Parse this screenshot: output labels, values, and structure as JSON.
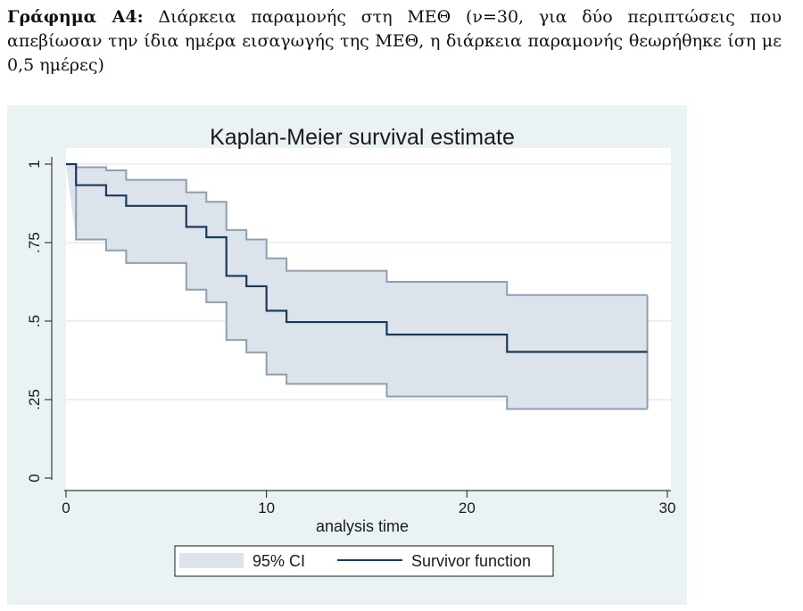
{
  "caption": {
    "label": "Γράφημα Α4:",
    "text": " Διάρκεια παραμονής στη ΜΕΘ (ν=30, για δύο περιπτώσεις που απεβίωσαν την ίδια ημέρα εισαγωγής της ΜΕΘ, η διάρκεια παραμονής θεωρήθηκε ίση με 0,5 ημέρες)"
  },
  "chart_data": {
    "type": "line",
    "title": "Kaplan-Meier survival estimate",
    "xlabel": "analysis time",
    "ylabel": "",
    "xlim": [
      0,
      30
    ],
    "ylim": [
      0,
      1
    ],
    "x_ticks": [
      {
        "value": 0,
        "label": "0"
      },
      {
        "value": 10,
        "label": "10"
      },
      {
        "value": 20,
        "label": "20"
      },
      {
        "value": 30,
        "label": "30"
      }
    ],
    "y_ticks": [
      {
        "value": 0,
        "label": "0"
      },
      {
        "value": 0.25,
        "label": ".25"
      },
      {
        "value": 0.5,
        "label": ".5"
      },
      {
        "value": 0.75,
        "label": ".75"
      },
      {
        "value": 1,
        "label": "1"
      }
    ],
    "grid": true,
    "legend": {
      "position": "bottom",
      "entries": [
        {
          "label": "95% CI",
          "kind": "band"
        },
        {
          "label": "Survivor function",
          "kind": "line"
        }
      ]
    },
    "colors": {
      "plot_background": "#ffffff",
      "figure_background": "#eaf2f3",
      "band_fill": "#dde3ea",
      "band_edge": "#8d9fb0",
      "survivor_line": "#1a3a5c",
      "grid": "#dfe6ea"
    },
    "series": [
      {
        "name": "Survivor function",
        "steps": [
          [
            0,
            1.0
          ],
          [
            0.5,
            0.933
          ],
          [
            2,
            0.9
          ],
          [
            3,
            0.867
          ],
          [
            6,
            0.8
          ],
          [
            7,
            0.767
          ],
          [
            8,
            0.644
          ],
          [
            9,
            0.611
          ],
          [
            10,
            0.533
          ],
          [
            11,
            0.497
          ],
          [
            16,
            0.457
          ],
          [
            22,
            0.402
          ],
          [
            29,
            0.402
          ]
        ]
      },
      {
        "name": "95% CI",
        "upper_steps": [
          [
            0,
            1.0
          ],
          [
            0.5,
            0.99
          ],
          [
            2,
            0.98
          ],
          [
            3,
            0.95
          ],
          [
            6,
            0.91
          ],
          [
            7,
            0.88
          ],
          [
            8,
            0.79
          ],
          [
            9,
            0.76
          ],
          [
            10,
            0.7
          ],
          [
            11,
            0.66
          ],
          [
            16,
            0.625
          ],
          [
            22,
            0.583
          ],
          [
            29,
            0.583
          ]
        ],
        "lower_steps": [
          [
            0.5,
            0.76
          ],
          [
            2,
            0.725
          ],
          [
            3,
            0.685
          ],
          [
            6,
            0.6
          ],
          [
            7,
            0.56
          ],
          [
            8,
            0.44
          ],
          [
            9,
            0.4
          ],
          [
            10,
            0.33
          ],
          [
            11,
            0.3
          ],
          [
            16,
            0.26
          ],
          [
            22,
            0.22
          ],
          [
            29,
            0.22
          ]
        ]
      }
    ]
  }
}
